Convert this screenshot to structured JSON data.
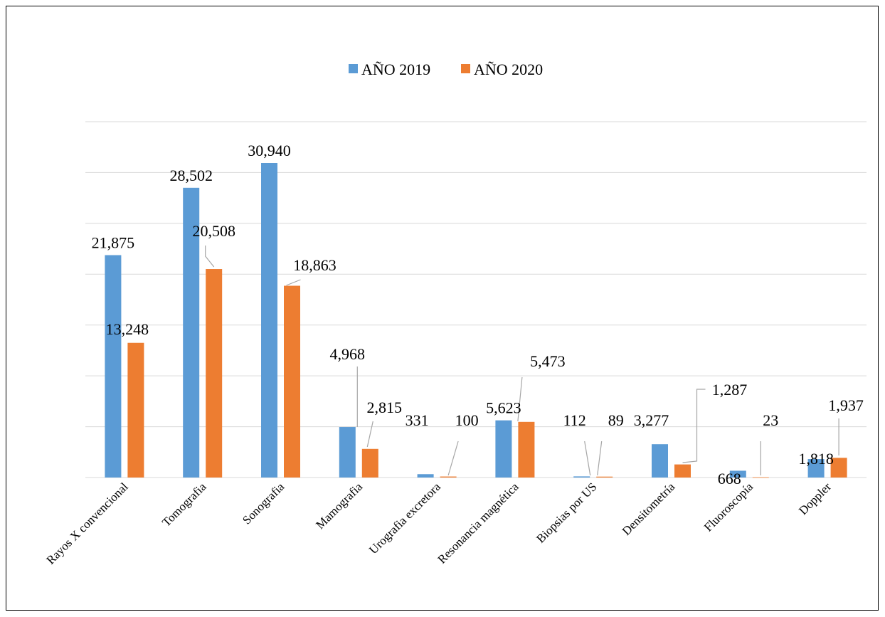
{
  "chart_data": {
    "type": "bar",
    "title": "",
    "xlabel": "",
    "ylabel": "",
    "ylim": [
      0,
      35000
    ],
    "grid": true,
    "legend_position": "top-center",
    "categories": [
      "Rayos X convencional",
      "Tomografia",
      "Sonografia",
      "Mamografia",
      "Urografia excretora",
      "Resonancia magnética",
      "Biopsias por US",
      "Densitometría",
      "Fluoroscopía",
      "Doppler"
    ],
    "series": [
      {
        "name": "AÑO 2019",
        "color": "#5B9BD5",
        "values": [
          21875,
          28502,
          30940,
          4968,
          331,
          5623,
          112,
          3277,
          668,
          1818
        ],
        "labels": [
          "21,875",
          "28,502",
          "30,940",
          "4,968",
          "331",
          "5,623",
          "112",
          "3,277",
          "668",
          "1,818"
        ]
      },
      {
        "name": "AÑO 2020",
        "color": "#ED7D31",
        "values": [
          13248,
          20508,
          18863,
          2815,
          100,
          5473,
          89,
          1287,
          23,
          1937
        ],
        "labels": [
          "13,248",
          "20,508",
          "18,863",
          "2,815",
          "100",
          "5,473",
          "89",
          "1,287",
          "23",
          "1,937"
        ]
      }
    ]
  }
}
